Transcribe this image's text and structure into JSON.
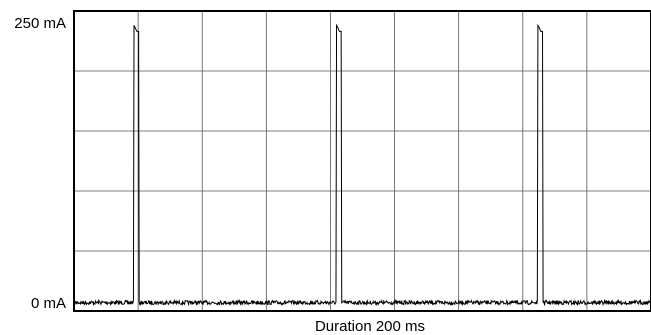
{
  "chart_data": {
    "type": "line",
    "title": "",
    "xlabel": "Duration 200 ms",
    "ylabel": "",
    "y_tick_labels": [
      "250 mA",
      "0 mA"
    ],
    "x_unit": "ms",
    "y_unit": "mA",
    "xlim": [
      0,
      200
    ],
    "ylim": [
      0,
      250
    ],
    "grid": true,
    "grid_divisions": {
      "x": 9,
      "y": 5
    },
    "baseline_mA": 7,
    "series": [
      {
        "values_description": "baseline",
        "x": [
          0,
          20.6,
          20.8,
          21.2,
          21.8,
          22.4,
          22.6,
          90.8,
          91.0,
          91.5,
          92.0,
          92.6,
          92.8,
          160.6,
          160.8,
          161.3,
          161.8,
          162.4,
          162.6,
          200
        ],
        "y": [
          7,
          7,
          238,
          236,
          233,
          233,
          7,
          7,
          238,
          236,
          233,
          233,
          7,
          7,
          238,
          236,
          233,
          233,
          7,
          7
        ]
      }
    ],
    "line_color": "#000000",
    "grid_color": "#555555"
  }
}
